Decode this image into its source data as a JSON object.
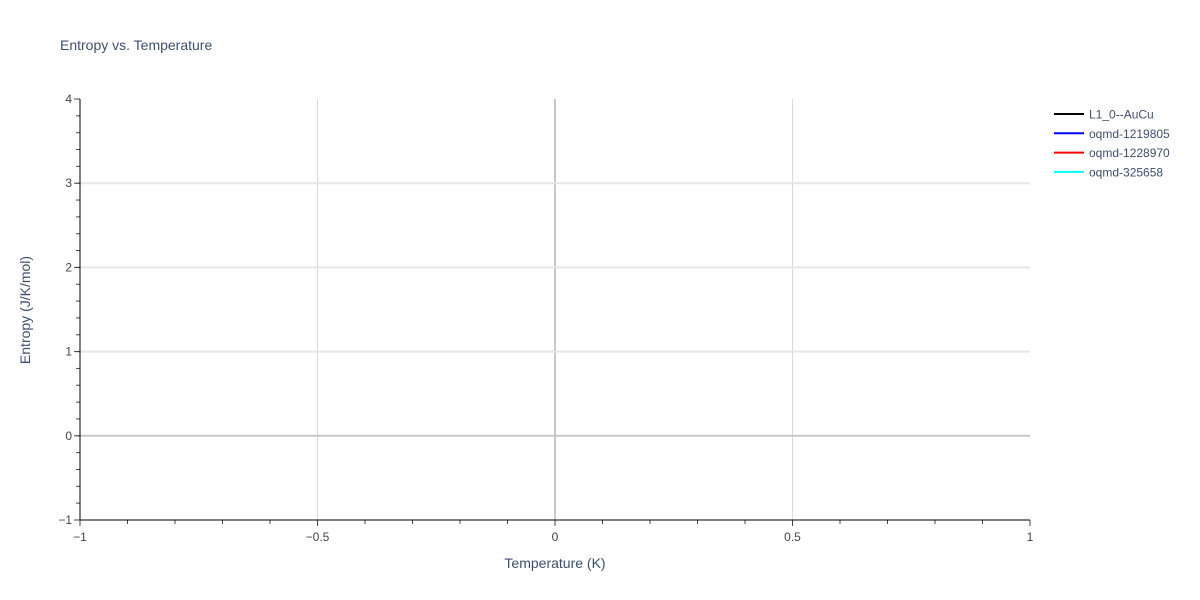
{
  "chart_data": {
    "type": "line",
    "title": "Entropy vs. Temperature",
    "xlabel": "Temperature (K)",
    "ylabel": "Entropy (J/K/mol)",
    "xlim": [
      -1,
      1
    ],
    "ylim": [
      -1,
      4
    ],
    "x_ticks": [
      -1,
      -0.5,
      0,
      0.5,
      1
    ],
    "x_tick_labels": [
      "−1",
      "−0.5",
      "0",
      "0.5",
      "1"
    ],
    "y_ticks": [
      -1,
      0,
      1,
      2,
      3,
      4
    ],
    "y_tick_labels": [
      "−1",
      "0",
      "1",
      "2",
      "3",
      "4"
    ],
    "grid": true,
    "legend_position": "right",
    "series": [
      {
        "name": "L1_0--AuCu",
        "color": "#000000",
        "x": [],
        "y": []
      },
      {
        "name": "oqmd-1219805",
        "color": "#0000ff",
        "x": [],
        "y": []
      },
      {
        "name": "oqmd-1228970",
        "color": "#ff0000",
        "x": [],
        "y": []
      },
      {
        "name": "oqmd-325658",
        "color": "#00ffff",
        "x": [],
        "y": []
      }
    ]
  }
}
